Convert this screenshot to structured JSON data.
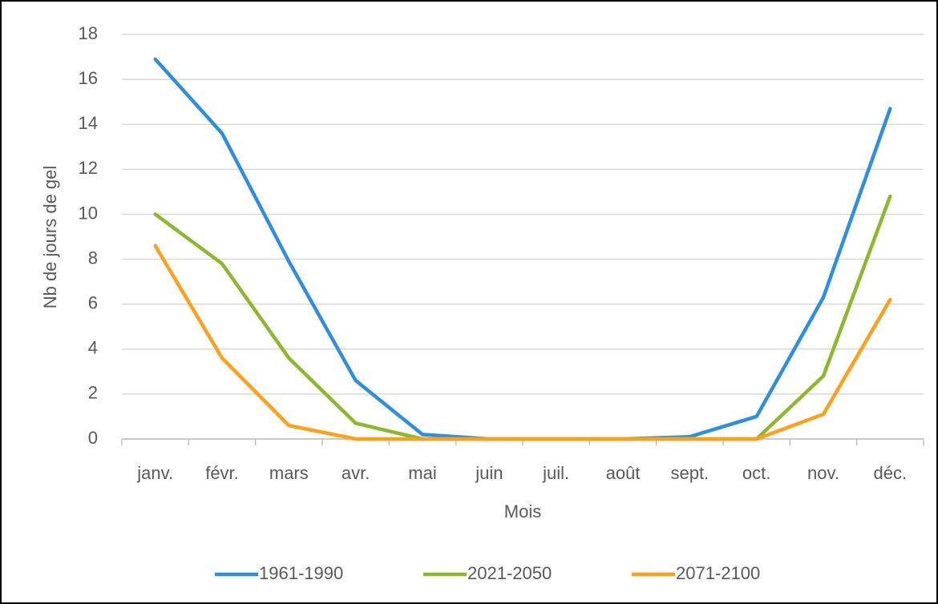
{
  "chart_data": {
    "type": "line",
    "x_label": "Mois",
    "y_label": "Nb de jours de gel",
    "categories": [
      "janv.",
      "févr.",
      "mars",
      "avr.",
      "mai",
      "juin",
      "juil.",
      "août",
      "sept.",
      "oct.",
      "nov.",
      "déc."
    ],
    "series": [
      {
        "name": "1961-1990",
        "color": "#2e8fe0",
        "values": [
          16.9,
          13.6,
          7.9,
          2.6,
          0.2,
          0,
          0,
          0,
          0.1,
          1.0,
          6.3,
          14.7
        ]
      },
      {
        "name": "2021-2050",
        "color": "#8cb82b",
        "values": [
          10.0,
          7.8,
          3.6,
          0.7,
          0,
          0,
          0,
          0,
          0,
          0,
          2.8,
          10.8
        ]
      },
      {
        "name": "2071-2100",
        "color": "#ff9f1a",
        "values": [
          8.6,
          3.6,
          0.6,
          0,
          0,
          0,
          0,
          0,
          0,
          0,
          1.1,
          6.2
        ]
      }
    ],
    "ylim": [
      0,
      18
    ],
    "yticks": [
      0,
      2,
      4,
      6,
      8,
      10,
      12,
      14,
      16,
      18
    ],
    "grid": true,
    "legend": "bottom"
  }
}
